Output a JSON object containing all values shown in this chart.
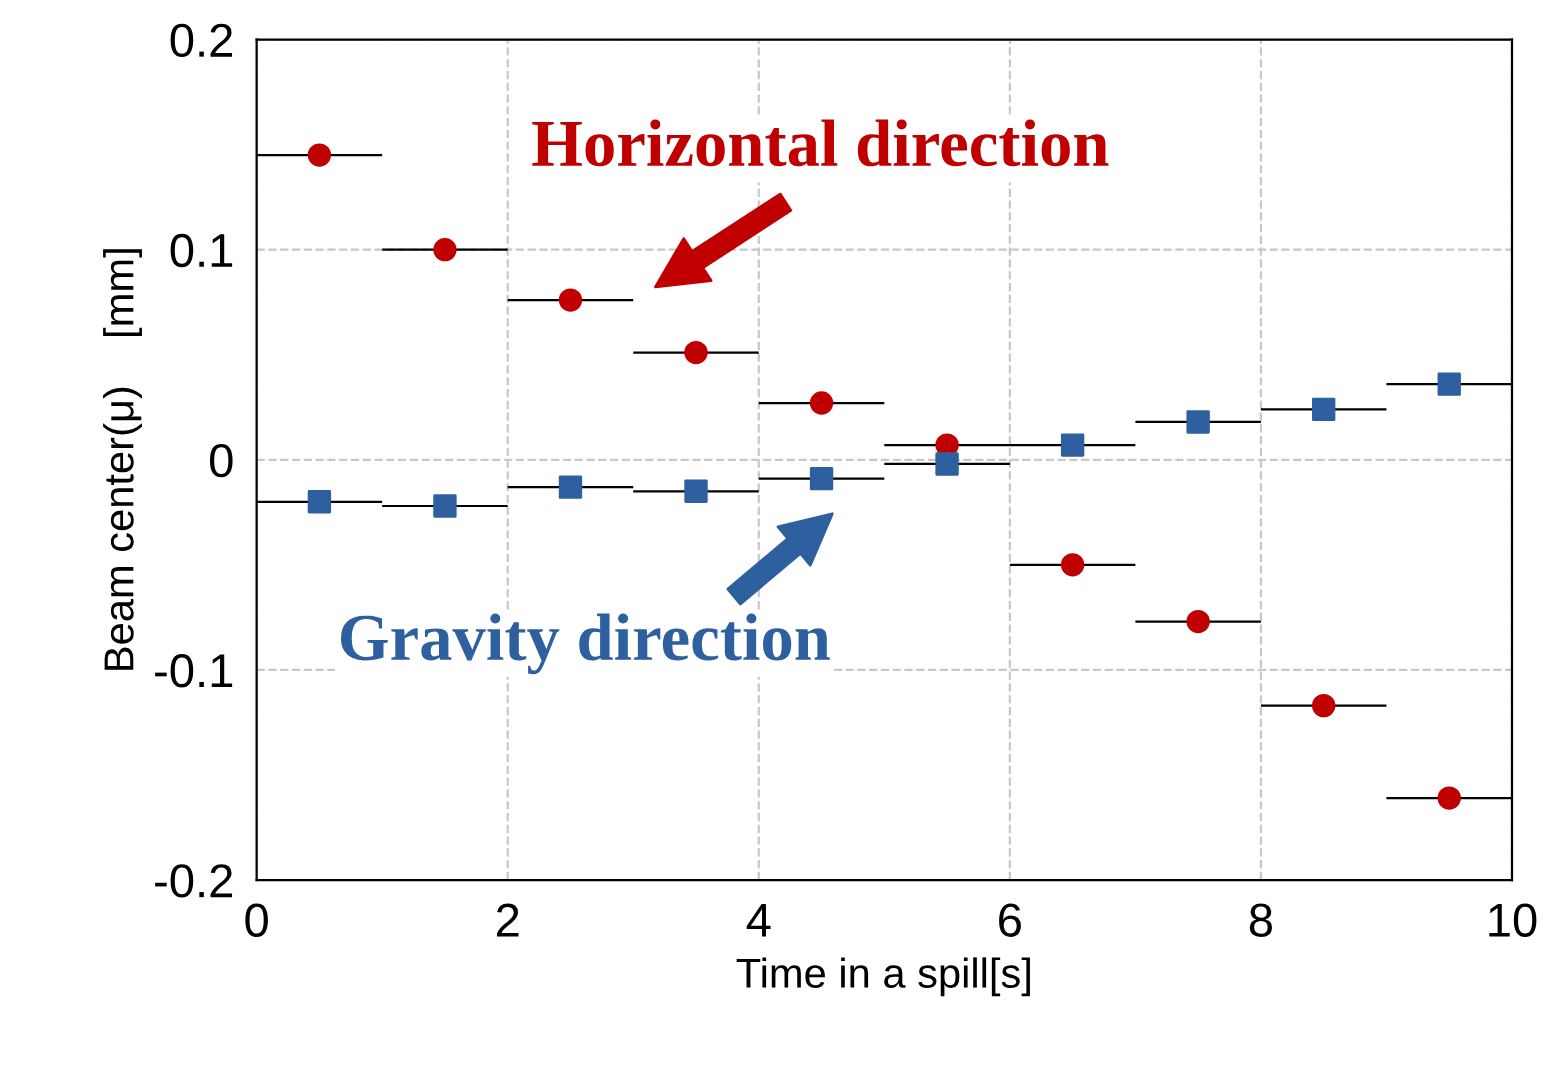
{
  "chart_data": {
    "type": "scatter",
    "xlabel": "Time in a spill[s]",
    "ylabel": "Beam center(μ)    [mm]",
    "xlim": [
      0,
      10
    ],
    "xticks": [
      0,
      2,
      4,
      6,
      8,
      10
    ],
    "ylim": [
      -0.2,
      0.2
    ],
    "yticks": [
      {
        "value": -0.2,
        "label": "-0.2"
      },
      {
        "value": -0.1,
        "label": "-0.1"
      },
      0,
      0.1,
      0.2
    ],
    "grid": true,
    "x": [
      0.5,
      1.5,
      2.5,
      3.5,
      4.5,
      5.5,
      6.5,
      7.5,
      8.5,
      9.5
    ],
    "series": [
      {
        "color": "#c00000",
        "marker": "circle",
        "values": [
          0.145,
          0.1,
          0.076,
          0.051,
          0.027,
          0.007,
          -0.05,
          -0.077,
          -0.117,
          -0.161
        ],
        "xerrors": [
          0.5,
          0.5,
          0.5,
          0.5,
          0.5,
          0.5,
          0.5,
          0.5,
          0.5,
          0.5
        ]
      },
      {
        "color": "#2e5f9e",
        "marker": "square",
        "values": [
          -0.02,
          -0.022,
          -0.013,
          -0.015,
          -0.009,
          -0.002,
          0.007,
          0.018,
          0.024,
          0.036
        ],
        "xerrors": [
          0.5,
          0.5,
          0.5,
          0.5,
          0.5,
          0.5,
          0.5,
          0.5,
          0.5,
          0.5
        ]
      }
    ],
    "annotations": [
      "Horizontal direction",
      "Gravity direction"
    ]
  }
}
